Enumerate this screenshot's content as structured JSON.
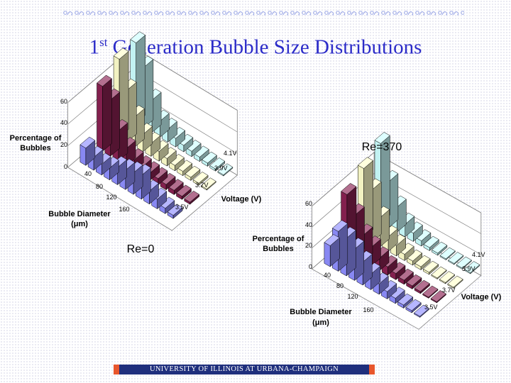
{
  "title": {
    "main": "Generation Bubble Size Distributions",
    "ordinal": "1",
    "ordinal_sup": "st"
  },
  "footer": "UNIVERSITY OF ILLINOIS AT URBANA-CHAMPAIGN",
  "colors": {
    "title": "#2b2bc8",
    "footer_bg": "#1f2f7d",
    "footer_edge": "#e8562c"
  },
  "chart_data": [
    {
      "type": "bar",
      "style": "3d-grouped",
      "label": "Re=0",
      "zlabel": "Percentage of Bubbles",
      "xlabel": "Bubble Diameter (μm)",
      "ylabel": "Voltage (V)",
      "zlim": [
        0,
        60
      ],
      "z_ticks": [
        "0",
        "20",
        "40",
        "60"
      ],
      "x_ticks": [
        "40",
        "80",
        "120",
        "160"
      ],
      "series": [
        {
          "name": "3.5V",
          "color": "#8f8fff",
          "values": [
            16,
            12,
            10,
            11,
            16,
            18,
            20,
            22,
            12,
            9,
            5,
            3
          ]
        },
        {
          "name": "3.7V",
          "color": "#8a2252",
          "values": [
            60,
            52,
            28,
            16,
            10,
            8,
            7,
            6,
            5,
            4,
            3,
            2
          ]
        },
        {
          "name": "3.9V",
          "color": "#ffffcc",
          "values": [
            72,
            48,
            28,
            16,
            12,
            9,
            7,
            5,
            4,
            3,
            2,
            1
          ]
        },
        {
          "name": "4.1V",
          "color": "#ccffff",
          "values": [
            74,
            56,
            30,
            15,
            12,
            8,
            6,
            5,
            4,
            3,
            2,
            1
          ]
        }
      ]
    },
    {
      "type": "bar",
      "style": "3d-grouped",
      "label": "Re=370",
      "zlabel": "Percentage of Bubbles",
      "xlabel": "Bubble Diameter (μm)",
      "ylabel": "Voltage (V)",
      "zlim": [
        0,
        60
      ],
      "z_ticks": [
        "0",
        "20",
        "40",
        "60"
      ],
      "x_ticks": [
        "40",
        "80",
        "120",
        "160"
      ],
      "series": [
        {
          "name": "3.5V",
          "color": "#8f8fff",
          "values": [
            20,
            38,
            36,
            30,
            22,
            15,
            10,
            7,
            5,
            3,
            2,
            1
          ]
        },
        {
          "name": "3.7V",
          "color": "#8a2252",
          "values": [
            55,
            40,
            25,
            18,
            12,
            8,
            6,
            4,
            3,
            2,
            1,
            1
          ]
        },
        {
          "name": "3.9V",
          "color": "#ffffcc",
          "values": [
            66,
            50,
            28,
            14,
            10,
            6,
            4,
            3,
            2,
            1,
            1,
            1
          ]
        },
        {
          "name": "4.1V",
          "color": "#ccffff",
          "values": [
            76,
            44,
            24,
            12,
            8,
            5,
            3,
            2,
            1,
            1,
            1,
            1
          ]
        }
      ]
    }
  ]
}
